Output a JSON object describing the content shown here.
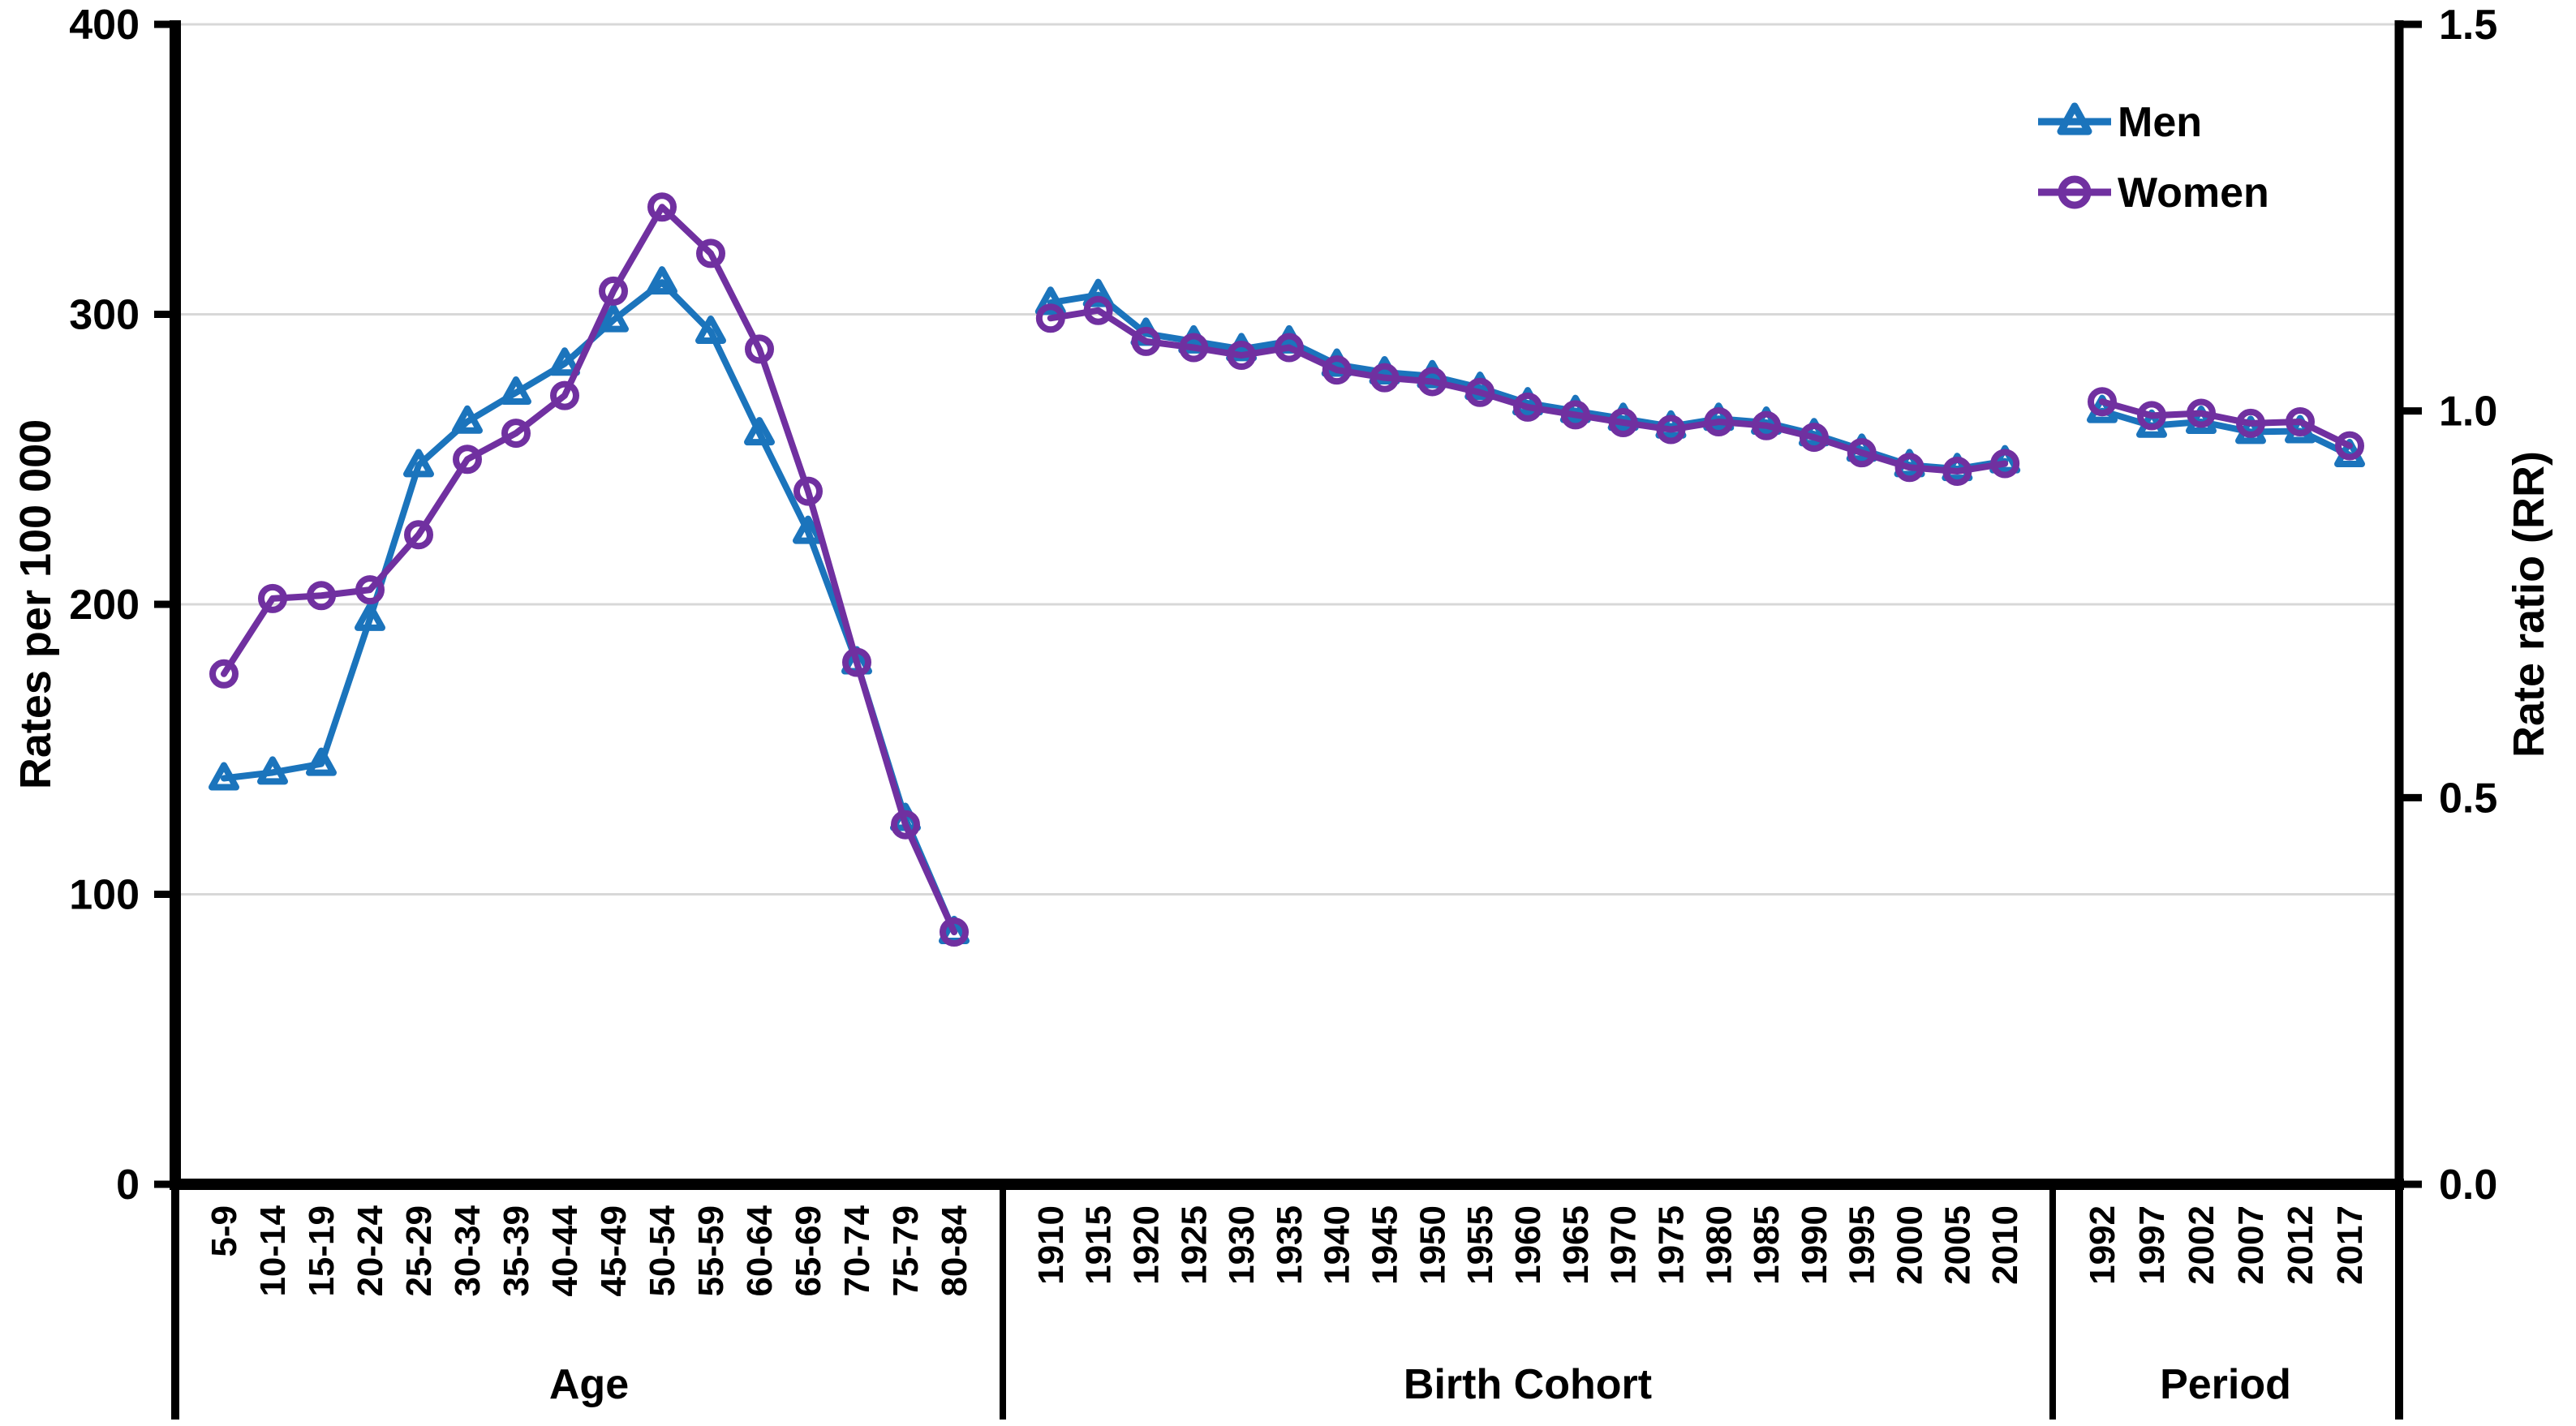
{
  "chart_data": {
    "type": "line",
    "title": "",
    "ylabel_left": "Rates per 100 000",
    "ylabel_right": "Rate ratio (RR)",
    "axis_left": {
      "min": 0,
      "max": 400,
      "tick_values": [
        0,
        100,
        200,
        300,
        400
      ],
      "tick_labels": [
        "0",
        "100",
        "200",
        "300",
        "400"
      ]
    },
    "axis_right": {
      "min": 0.0,
      "max": 1.5,
      "tick_values": [
        0,
        0.5,
        1.0,
        1.5
      ],
      "tick_labels": [
        "0.0",
        "0.5",
        "1.0",
        "1.5"
      ]
    },
    "grid": "horizontal",
    "colors": {
      "men_blue": "#1B74BC",
      "women_purple": "#7030A0",
      "gridline": "#D8D8D8",
      "axis_black": "#000000"
    },
    "legend": {
      "position": "top-right",
      "entries": [
        {
          "label": "Men",
          "marker": "triangle",
          "color": "#1B74BC"
        },
        {
          "label": "Women",
          "marker": "circle",
          "color": "#7030A0"
        }
      ]
    },
    "panels": [
      {
        "title": "Age",
        "value_axis": "left",
        "categories": [
          "5-9",
          "10-14",
          "15-19",
          "20-24",
          "25-29",
          "30-34",
          "35-39",
          "40-44",
          "45-49",
          "50-54",
          "55-59",
          "60-64",
          "65-69",
          "70-74",
          "75-79",
          "80-84"
        ],
        "series": [
          {
            "name": "Men",
            "values": [
              140,
              142,
              145,
              195,
              248,
              263,
              273,
              283,
              298,
              311,
              294,
              259,
              225,
              180,
              126,
              87
            ]
          },
          {
            "name": "Women",
            "values": [
              176,
              202,
              203,
              205,
              224,
              250,
              259,
              272,
              308,
              337,
              321,
              288,
              239,
              180,
              124,
              87
            ]
          }
        ]
      },
      {
        "title": "Birth Cohort",
        "value_axis": "right",
        "categories": [
          "1910",
          "1915",
          "1920",
          "1925",
          "1930",
          "1935",
          "1940",
          "1945",
          "1950",
          "1955",
          "1960",
          "1965",
          "1970",
          "1975",
          "1980",
          "1985",
          "1990",
          "1995",
          "2000",
          "2005",
          "2010"
        ],
        "series": [
          {
            "name": "Men",
            "values": [
              1.14,
              1.15,
              1.1,
              1.09,
              1.08,
              1.09,
              1.06,
              1.05,
              1.045,
              1.03,
              1.01,
              1.0,
              0.99,
              0.98,
              0.99,
              0.985,
              0.97,
              0.95,
              0.93,
              0.925,
              0.935
            ]
          },
          {
            "name": "Women",
            "values": [
              1.12,
              1.13,
              1.09,
              1.082,
              1.072,
              1.082,
              1.053,
              1.043,
              1.038,
              1.024,
              1.005,
              0.995,
              0.985,
              0.976,
              0.986,
              0.981,
              0.966,
              0.946,
              0.927,
              0.922,
              0.932
            ]
          }
        ]
      },
      {
        "title": "Period",
        "value_axis": "right",
        "categories": [
          "1992",
          "1997",
          "2002",
          "2007",
          "2012",
          "2017"
        ],
        "series": [
          {
            "name": "Men",
            "values": [
              1.0,
              0.981,
              0.986,
              0.973,
              0.974,
              0.943
            ]
          },
          {
            "name": "Women",
            "values": [
              1.012,
              0.994,
              0.997,
              0.984,
              0.986,
              0.955
            ]
          }
        ]
      }
    ]
  }
}
